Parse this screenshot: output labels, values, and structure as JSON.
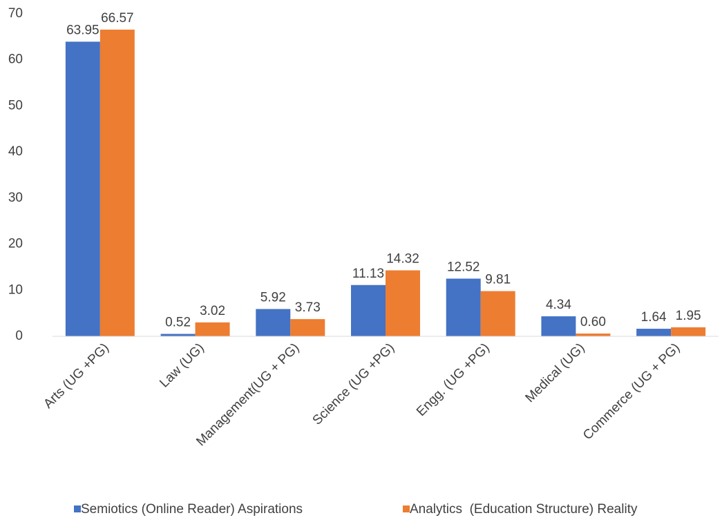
{
  "chart_data": {
    "type": "bar",
    "categories": [
      "Arts (UG +PG)",
      "Law (UG)",
      "Management(UG + PG)",
      "Science (UG +PG)",
      "Engg. (UG +PG)",
      "Medical (UG)",
      "Commerce (UG + PG)"
    ],
    "series": [
      {
        "name": "Semiotics (Online Reader) Aspirations",
        "color": "#4472c4",
        "values": [
          63.95,
          0.52,
          5.92,
          11.13,
          12.52,
          4.34,
          1.64
        ],
        "value_labels": [
          "63.95",
          "0.52",
          "5.92",
          "11.13",
          "12.52",
          "4.34",
          "1.64"
        ]
      },
      {
        "name": "Analytics  (Education Structure) Reality",
        "color": "#ed7d31",
        "values": [
          66.57,
          3.02,
          3.73,
          14.32,
          9.81,
          0.6,
          1.95
        ],
        "value_labels": [
          "66.57",
          "3.02",
          "3.73",
          "14.32",
          "9.81",
          "0.60",
          "1.95"
        ]
      }
    ],
    "ylim": [
      0,
      70
    ],
    "yticks": [
      0,
      10,
      20,
      30,
      40,
      50,
      60,
      70
    ],
    "grid": false,
    "legend": "bottom"
  }
}
